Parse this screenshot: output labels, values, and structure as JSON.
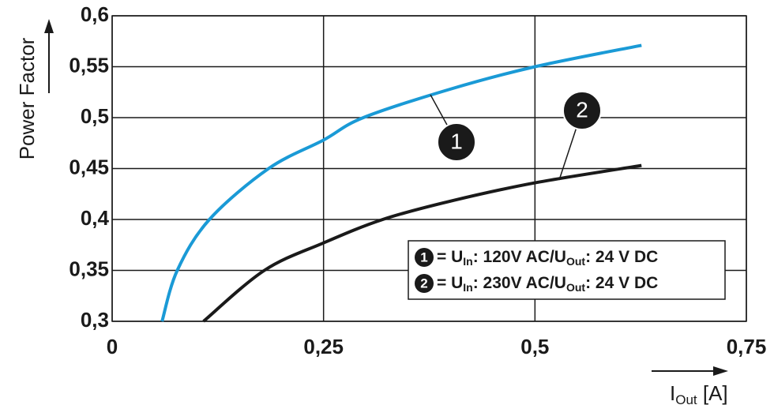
{
  "chart_data": {
    "type": "line",
    "ylabel": "Power Factor",
    "xlabel": [
      "I",
      "Out",
      " [A]"
    ],
    "xlim": [
      0,
      0.75
    ],
    "ylim": [
      0.3,
      0.6
    ],
    "xticks": [
      0,
      {
        "value": 0.25,
        "label": "0,25"
      },
      {
        "value": 0.5,
        "label": "0,5"
      },
      {
        "value": 0.75,
        "label": "0,75"
      }
    ],
    "yticks": [
      {
        "value": 0.3,
        "label": "0,3"
      },
      {
        "value": 0.35,
        "label": "0,35"
      },
      {
        "value": 0.4,
        "label": "0,4"
      },
      {
        "value": 0.45,
        "label": "0,45"
      },
      {
        "value": 0.5,
        "label": "0,5"
      },
      {
        "value": 0.55,
        "label": "0,55"
      },
      {
        "value": 0.6,
        "label": "0,6"
      }
    ],
    "grid": true,
    "series": [
      {
        "name": "1",
        "color": "#1a9ad6",
        "legend": [
          "= U",
          "In",
          ": 120V AC/U",
          "Out",
          ": 24 V DC"
        ],
        "x": [
          0.059,
          0.077,
          0.115,
          0.185,
          0.25,
          0.297,
          0.4,
          0.5,
          0.626
        ],
        "values": [
          0.3,
          0.35,
          0.4,
          0.45,
          0.478,
          0.5,
          0.528,
          0.55,
          0.571
        ]
      },
      {
        "name": "2",
        "color": "#1a1a1a",
        "legend": [
          "= U",
          "In",
          ": 230V AC/U",
          "Out",
          ": 24 V DC"
        ],
        "x": [
          0.108,
          0.18,
          0.25,
          0.32,
          0.4,
          0.5,
          0.626
        ],
        "values": [
          0.3,
          0.35,
          0.377,
          0.4,
          0.418,
          0.436,
          0.453
        ]
      }
    ]
  }
}
